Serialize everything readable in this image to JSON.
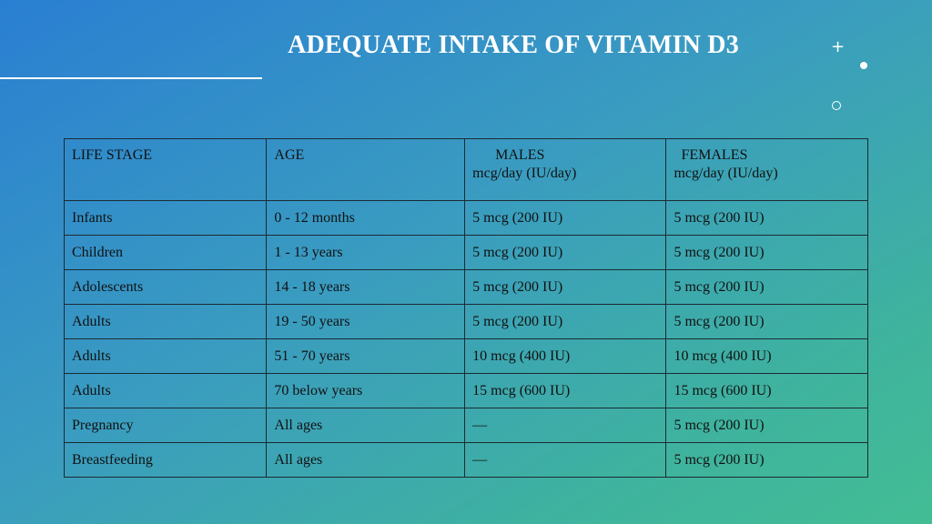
{
  "title": "ADEQUATE INTAKE OF VITAMIN D3",
  "colors": {
    "gradient_start": "#2a7fd2",
    "gradient_end": "#42bd94",
    "text": "#111111",
    "title_text": "#ffffff"
  },
  "decorations": [
    "plus-icon",
    "dot-icon",
    "ring-icon"
  ],
  "table": {
    "headers": {
      "life_stage": "LIFE STAGE",
      "age": "AGE",
      "males": "MALES",
      "males_unit": "mcg/day (IU/day)",
      "females": "FEMALES",
      "females_unit": "mcg/day (IU/day)"
    },
    "rows": [
      {
        "stage": "Infants",
        "age": "0 - 12 months",
        "males": "5 mcg (200 IU)",
        "females": "5 mcg (200 IU)"
      },
      {
        "stage": "Children",
        "age": "1 - 13 years",
        "males": "5 mcg (200 IU)",
        "females": "5 mcg (200 IU)"
      },
      {
        "stage": "Adolescents",
        "age": "14 - 18 years",
        "males": "5 mcg (200 IU)",
        "females": "5 mcg (200 IU)"
      },
      {
        "stage": "Adults",
        "age": "19 - 50 years",
        "males": "5 mcg (200 IU)",
        "females": "5 mcg (200 IU)"
      },
      {
        "stage": "Adults",
        "age": "51 - 70 years",
        "males": "10 mcg (400 IU)",
        "females": "10 mcg (400 IU)"
      },
      {
        "stage": "Adults",
        "age": "70 below years",
        "males": "15 mcg (600 IU)",
        "females": "15 mcg (600 IU)"
      },
      {
        "stage": "Pregnancy",
        "age": "All ages",
        "males": "—",
        "females": "5 mcg (200 IU)"
      },
      {
        "stage": "Breastfeeding",
        "age": "All ages",
        "males": "—",
        "females": "5 mcg (200 IU)"
      }
    ]
  }
}
